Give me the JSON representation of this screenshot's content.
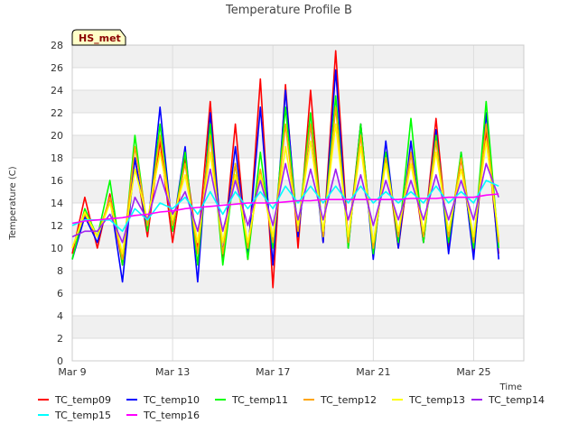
{
  "chart_data": {
    "type": "line",
    "title": "Temperature Profile B",
    "xlabel": "Time",
    "ylabel": "Temperature (C)",
    "station_badge": "HS_met",
    "ylim": [
      0,
      28
    ],
    "yticks": [
      0,
      2,
      4,
      6,
      8,
      10,
      12,
      14,
      16,
      18,
      20,
      22,
      24,
      26,
      28
    ],
    "xlim": [
      "Mar 9",
      "Mar 27"
    ],
    "xticks": [
      {
        "label": "Mar 9",
        "day": 9
      },
      {
        "label": "Mar 13",
        "day": 13
      },
      {
        "label": "Mar 17",
        "day": 17
      },
      {
        "label": "Mar 21",
        "day": 21
      },
      {
        "label": "Mar 25",
        "day": 25
      }
    ],
    "grid": true,
    "legend_position": "bottom",
    "x_days": [
      9.0,
      9.5,
      10.0,
      10.5,
      11.0,
      11.5,
      12.0,
      12.5,
      13.0,
      13.5,
      14.0,
      14.5,
      15.0,
      15.5,
      16.0,
      16.5,
      17.0,
      17.5,
      18.0,
      18.5,
      19.0,
      19.5,
      20.0,
      20.5,
      21.0,
      21.5,
      22.0,
      22.5,
      23.0,
      23.5,
      24.0,
      24.5,
      25.0,
      25.5,
      26.0
    ],
    "series": [
      {
        "name": "TC_temp09",
        "color": "#ff0000",
        "values": [
          9.5,
          14.5,
          10.0,
          14.8,
          8.5,
          18.0,
          11.0,
          19.5,
          10.5,
          18.0,
          10.0,
          23.0,
          9.0,
          21.0,
          9.0,
          25.0,
          6.5,
          24.5,
          10.0,
          24.0,
          10.5,
          27.5,
          10.5,
          21.0,
          9.5,
          18.5,
          10.0,
          18.5,
          10.5,
          21.5,
          10.0,
          18.0,
          9.5,
          20.5,
          9.5
        ]
      },
      {
        "name": "TC_temp10",
        "color": "#0000ff",
        "values": [
          9.0,
          12.8,
          10.5,
          14.5,
          7.0,
          18.0,
          11.5,
          22.5,
          11.5,
          19.0,
          7.0,
          22.0,
          9.5,
          19.0,
          9.5,
          22.5,
          8.5,
          24.0,
          11.0,
          21.0,
          10.5,
          25.8,
          10.0,
          21.0,
          9.0,
          19.5,
          10.0,
          19.5,
          10.5,
          20.5,
          9.5,
          18.5,
          9.0,
          22.0,
          9.0
        ]
      },
      {
        "name": "TC_temp11",
        "color": "#00ff00",
        "values": [
          9.0,
          13.5,
          11.0,
          16.0,
          8.5,
          20.0,
          11.5,
          21.0,
          11.5,
          18.5,
          8.5,
          21.0,
          8.5,
          17.5,
          9.0,
          18.5,
          10.0,
          22.5,
          11.5,
          22.0,
          11.0,
          23.5,
          10.0,
          21.0,
          9.5,
          18.5,
          10.5,
          21.5,
          10.5,
          20.0,
          10.5,
          18.5,
          10.0,
          23.0,
          10.0
        ]
      },
      {
        "name": "TC_temp12",
        "color": "#ffa500",
        "values": [
          10.0,
          13.0,
          11.0,
          14.5,
          9.0,
          19.0,
          12.0,
          20.0,
          12.0,
          17.5,
          9.5,
          20.0,
          9.5,
          17.5,
          10.0,
          17.0,
          10.5,
          21.0,
          11.5,
          21.0,
          11.0,
          22.5,
          10.5,
          20.0,
          10.0,
          18.0,
          11.0,
          18.5,
          11.0,
          19.5,
          11.0,
          18.0,
          10.5,
          21.0,
          10.5
        ]
      },
      {
        "name": "TC_temp13",
        "color": "#ffff00",
        "values": [
          10.0,
          13.2,
          11.0,
          14.0,
          9.5,
          17.0,
          12.5,
          18.5,
          12.5,
          16.5,
          10.5,
          18.5,
          10.5,
          16.5,
          10.5,
          16.5,
          11.0,
          19.0,
          12.0,
          19.5,
          11.5,
          21.0,
          11.0,
          19.0,
          10.5,
          17.5,
          11.5,
          17.5,
          11.5,
          18.5,
          11.5,
          17.0,
          11.0,
          19.5,
          11.0
        ]
      },
      {
        "name": "TC_temp14",
        "color": "#a020f0",
        "values": [
          11.0,
          11.5,
          11.5,
          13.0,
          10.5,
          14.5,
          12.5,
          16.5,
          13.0,
          15.0,
          11.5,
          17.0,
          11.5,
          16.0,
          12.0,
          16.0,
          12.0,
          17.5,
          12.5,
          17.0,
          12.5,
          17.0,
          12.5,
          16.5,
          12.0,
          16.0,
          12.5,
          16.0,
          12.5,
          16.5,
          12.5,
          16.0,
          12.5,
          17.5,
          14.5
        ]
      },
      {
        "name": "TC_temp15",
        "color": "#00ffff",
        "values": [
          12.0,
          12.5,
          12.5,
          12.5,
          11.5,
          13.5,
          12.5,
          14.0,
          13.5,
          14.5,
          13.0,
          15.0,
          13.0,
          15.0,
          13.5,
          15.0,
          13.5,
          15.5,
          14.0,
          15.5,
          14.0,
          15.5,
          14.0,
          15.5,
          14.0,
          15.0,
          14.0,
          15.0,
          14.0,
          15.5,
          14.0,
          15.0,
          14.0,
          16.0,
          15.5
        ]
      },
      {
        "name": "TC_temp16",
        "color": "#ff00ff",
        "values": [
          12.2,
          12.4,
          12.5,
          12.6,
          12.7,
          12.9,
          13.0,
          13.2,
          13.3,
          13.5,
          13.6,
          13.7,
          13.8,
          13.9,
          14.0,
          14.0,
          14.0,
          14.1,
          14.2,
          14.2,
          14.3,
          14.3,
          14.3,
          14.3,
          14.3,
          14.3,
          14.3,
          14.4,
          14.4,
          14.4,
          14.5,
          14.5,
          14.5,
          14.7,
          14.8
        ]
      }
    ]
  }
}
